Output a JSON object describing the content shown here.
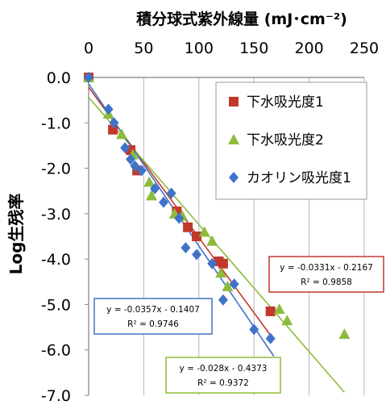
{
  "chart_data": {
    "type": "scatter",
    "title": "",
    "xlabel": "積分球式紫外線量 (mJ･cm⁻²)",
    "ylabel": "Log生残率",
    "xlim": [
      0,
      250
    ],
    "ylim": [
      -7.0,
      0.0
    ],
    "x_axis_position": "top",
    "grid": "vertical",
    "x_ticks": [
      "0",
      "50",
      "100",
      "150",
      "200",
      "250"
    ],
    "y_ticks": [
      "0.0",
      "-1.0",
      "-2.0",
      "-3.0",
      "-4.0",
      "-5.0",
      "-6.0",
      "-7.0"
    ],
    "legend_position": "top-right",
    "series": [
      {
        "name": "下水吸光度1",
        "marker": "square",
        "color": "#c0392b",
        "x": [
          0,
          22,
          38,
          44,
          80,
          90,
          98,
          118,
          122,
          165
        ],
        "y": [
          0.0,
          -1.15,
          -1.6,
          -2.05,
          -2.95,
          -3.3,
          -3.5,
          -4.05,
          -4.1,
          -5.15
        ],
        "trendline": {
          "slope": -0.0331,
          "intercept": -0.2167,
          "label": "y = -0.0331x - 0.2167",
          "r2_label": "R² = 0.9858"
        }
      },
      {
        "name": "下水吸光度2",
        "marker": "triangle",
        "color": "#8dbb3c",
        "x": [
          0,
          18,
          30,
          40,
          55,
          57,
          78,
          85,
          105,
          112,
          120,
          126,
          173,
          180,
          232
        ],
        "y": [
          0.0,
          -0.8,
          -1.25,
          -1.7,
          -2.3,
          -2.6,
          -3.0,
          -3.05,
          -3.4,
          -3.6,
          -4.3,
          -4.6,
          -5.1,
          -5.35,
          -5.65
        ],
        "trendline": {
          "slope": -0.028,
          "intercept": -0.4373,
          "label": "y = -0.028x - 0.4373",
          "r2_label": "R² = 0.9372"
        }
      },
      {
        "name": "カオリン吸光度1",
        "marker": "diamond",
        "color": "#3f73c8",
        "x": [
          0,
          18,
          23,
          33,
          38,
          42,
          48,
          60,
          68,
          75,
          82,
          88,
          98,
          112,
          122,
          132,
          150,
          165
        ],
        "y": [
          0.0,
          -0.7,
          -1.0,
          -1.55,
          -1.8,
          -1.95,
          -2.05,
          -2.45,
          -2.75,
          -2.55,
          -3.1,
          -3.75,
          -3.9,
          -4.1,
          -4.9,
          -4.55,
          -5.55,
          -5.75
        ],
        "trendline": {
          "slope": -0.0357,
          "intercept": -0.1407,
          "label": "y = -0.0357x - 0.1407",
          "r2_label": "R² = 0.9746"
        }
      }
    ]
  }
}
